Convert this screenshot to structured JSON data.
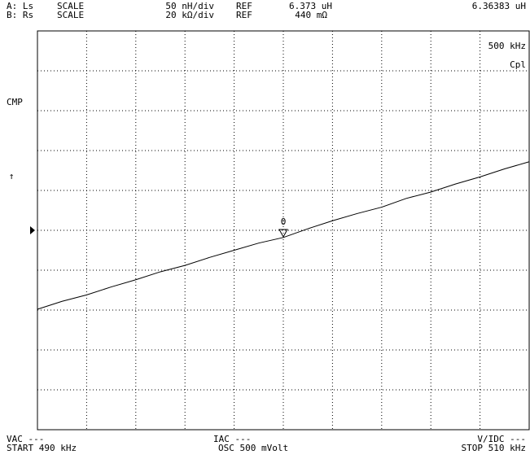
{
  "chart_data": {
    "type": "line",
    "header": [
      "A: Ls",
      "SCALE",
      "50 nH/div",
      "REF",
      "6.373 uH",
      "B: Rs",
      "SCALE",
      "20 kΩ/div",
      "REF",
      "440 mΩ"
    ],
    "marker": {
      "label": "0",
      "x": 500,
      "value": 6.36383,
      "value_label": "6.36383 uH"
    },
    "side_labels": [
      "500 kHz",
      "Cpl",
      "CMP",
      "↑"
    ],
    "footer": [
      "VAC ---",
      "START 490 kHz",
      "IAC ---",
      "OSC 500 mVolt",
      "V/IDC ---",
      "STOP 510 kHz"
    ],
    "x": [
      490,
      491,
      492,
      493,
      494,
      495,
      496,
      497,
      498,
      499,
      500,
      501,
      502,
      503,
      504,
      505,
      506,
      507,
      508,
      509,
      510
    ],
    "series": [
      {
        "name": "Ls",
        "color": "#000000",
        "values": [
          6.274,
          6.284,
          6.292,
          6.302,
          6.311,
          6.321,
          6.329,
          6.339,
          6.348,
          6.357,
          6.364,
          6.375,
          6.385,
          6.394,
          6.402,
          6.413,
          6.421,
          6.431,
          6.44,
          6.45,
          6.459
        ]
      }
    ],
    "xlim": [
      490,
      510
    ],
    "xticks": [
      490,
      492,
      494,
      496,
      498,
      500,
      502,
      504,
      506,
      508,
      510
    ],
    "ylim": [
      6.123,
      6.623
    ],
    "yticks": [
      6.123,
      6.173,
      6.223,
      6.273,
      6.323,
      6.373,
      6.423,
      6.473,
      6.523,
      6.573,
      6.623
    ],
    "grid": true
  }
}
